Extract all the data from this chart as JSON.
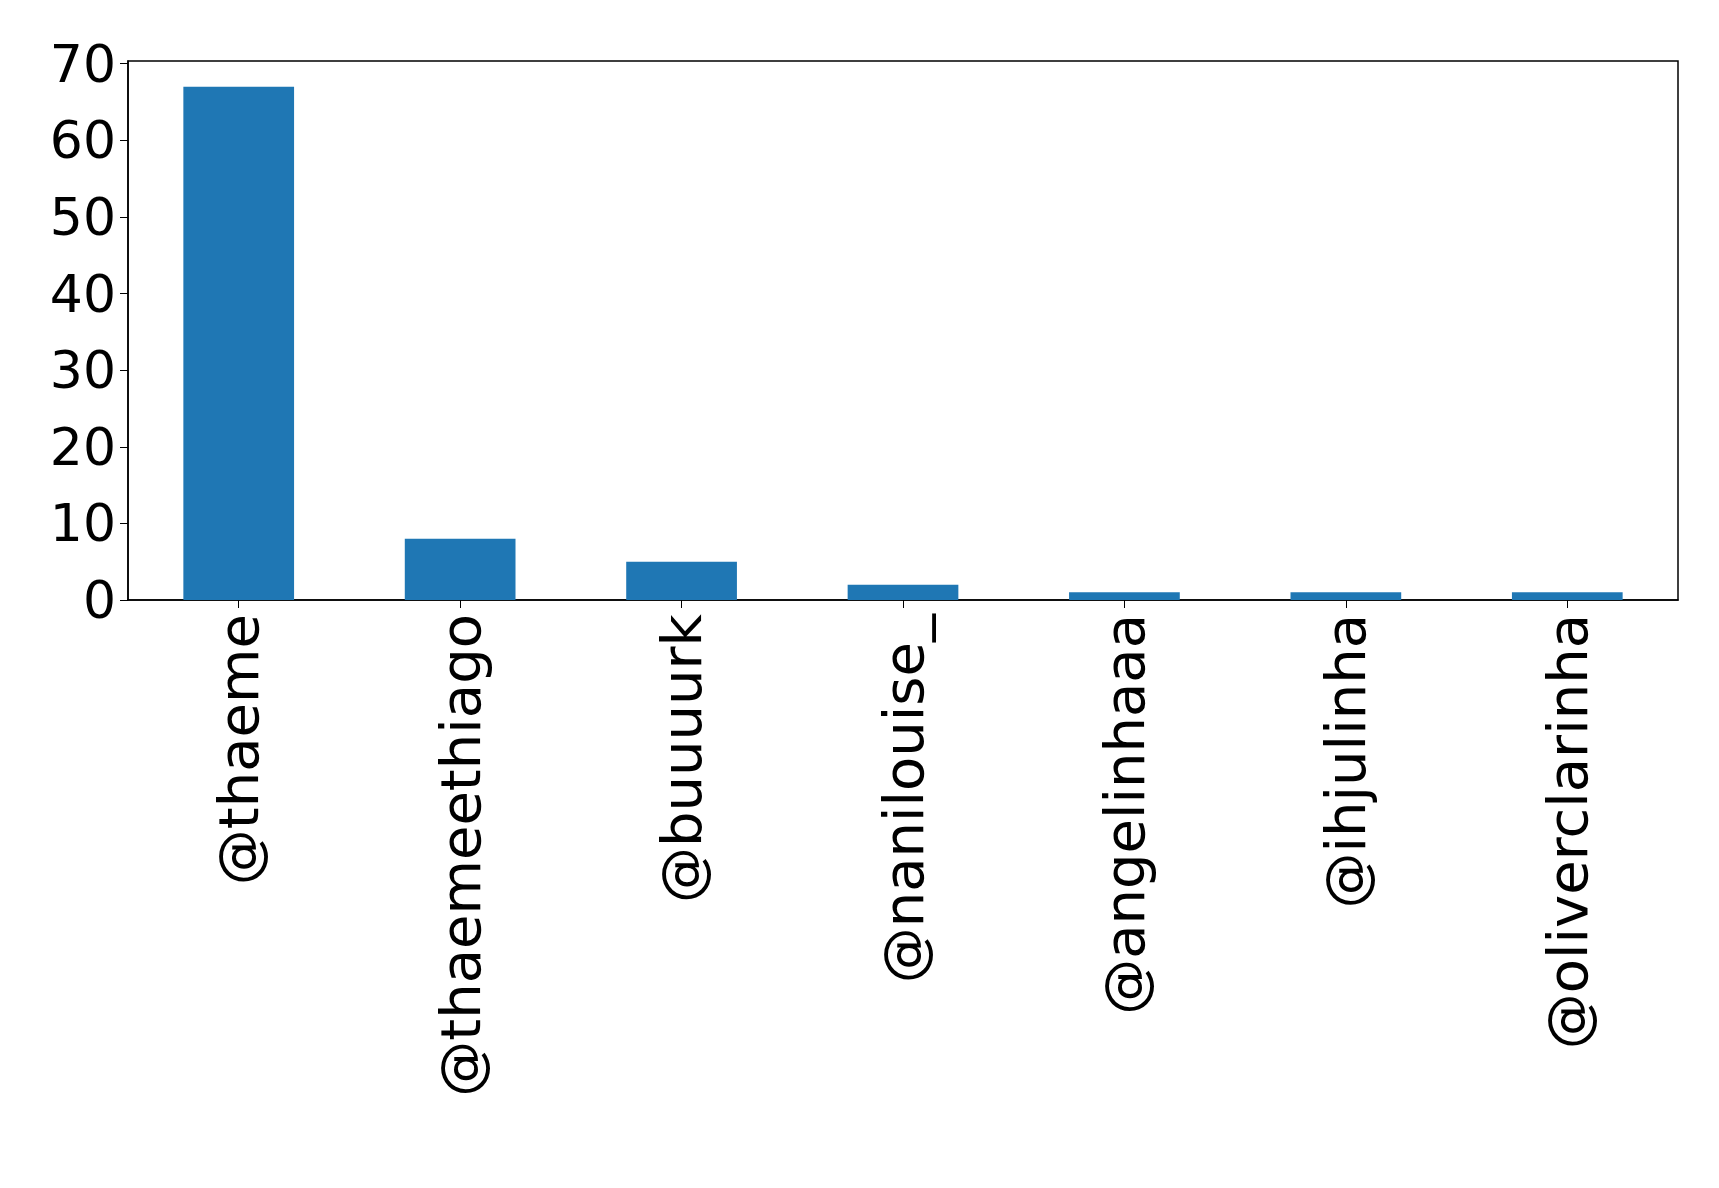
{
  "chart_data": {
    "type": "bar",
    "categories": [
      "@thaeme",
      "@thaemeethiago",
      "@buuuurk",
      "@nanilouise_",
      "@angelinhaaa",
      "@ihjulinha",
      "@oliverclarinha"
    ],
    "values": [
      67,
      8,
      5,
      2,
      1,
      1,
      1
    ],
    "color": "#1f77b4",
    "ylim": [
      0,
      70.35
    ],
    "yticks": [
      0,
      10,
      20,
      30,
      40,
      50,
      60,
      70
    ],
    "grid": false
  }
}
